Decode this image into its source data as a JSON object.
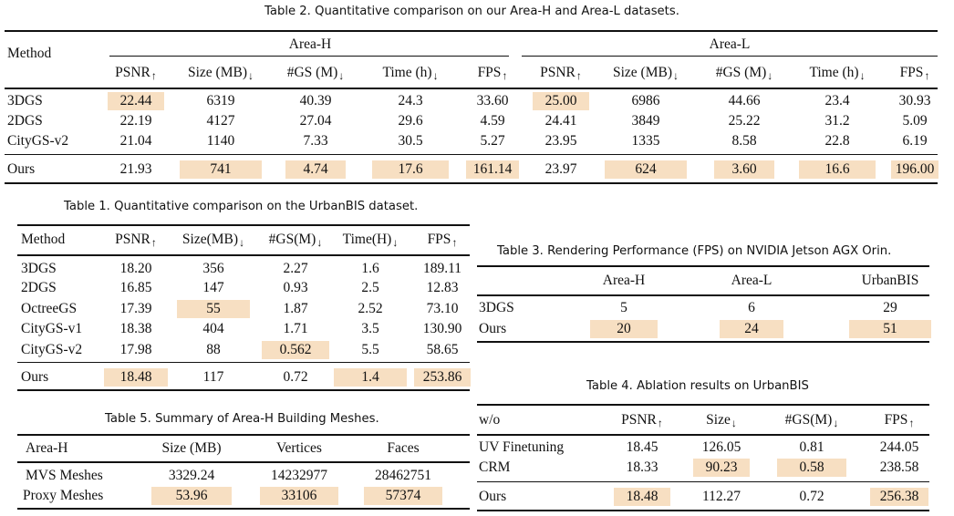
{
  "table2": {
    "caption": "Table 2.  Quantitative comparison on our Area-H and Area-L datasets.",
    "method_header": "Method",
    "group_h": "Area-H",
    "group_l": "Area-L",
    "cols": [
      "PSNR",
      "Size (MB)",
      "#GS (M)",
      "Time (h)",
      "FPS"
    ],
    "arrows": [
      "↑",
      "↓",
      "↓",
      "↓",
      "↑"
    ],
    "rows": [
      {
        "method": "3DGS",
        "h": [
          "22.44",
          "6319",
          "40.39",
          "24.3",
          "33.60"
        ],
        "l": [
          "25.00",
          "6986",
          "44.66",
          "23.4",
          "30.93"
        ]
      },
      {
        "method": "2DGS",
        "h": [
          "22.19",
          "4127",
          "27.04",
          "29.6",
          "4.59"
        ],
        "l": [
          "24.41",
          "3849",
          "25.22",
          "31.2",
          "5.09"
        ]
      },
      {
        "method": "CityGS-v2",
        "h": [
          "21.04",
          "1140",
          "7.33",
          "30.5",
          "5.27"
        ],
        "l": [
          "23.95",
          "1335",
          "8.58",
          "22.8",
          "6.19"
        ]
      },
      {
        "method": "Ours",
        "h": [
          "21.93",
          "741",
          "4.74",
          "17.6",
          "161.14"
        ],
        "l": [
          "23.97",
          "624",
          "3.60",
          "16.6",
          "196.00"
        ]
      }
    ]
  },
  "table1": {
    "caption": "Table 1.  Quantitative comparison on the UrbanBIS dataset.",
    "headers": [
      "Method",
      "PSNR",
      "Size(MB)",
      "#GS(M)",
      "Time(H)",
      "FPS"
    ],
    "arrows": [
      "",
      "↑",
      "↓",
      "↓",
      "↓",
      "↑"
    ],
    "rows": [
      [
        "3DGS",
        "18.20",
        "356",
        "2.27",
        "1.6",
        "189.11"
      ],
      [
        "2DGS",
        "16.85",
        "147",
        "0.93",
        "2.5",
        "12.83"
      ],
      [
        "OctreeGS",
        "17.39",
        "55",
        "1.87",
        "2.52",
        "73.10"
      ],
      [
        "CityGS-v1",
        "18.38",
        "404",
        "1.71",
        "3.5",
        "130.90"
      ],
      [
        "CityGS-v2",
        "17.98",
        "88",
        "0.562",
        "5.5",
        "58.65"
      ],
      [
        "Ours",
        "18.48",
        "117",
        "0.72",
        "1.4",
        "253.86"
      ]
    ]
  },
  "table3": {
    "caption": "Table 3.  Rendering Performance (FPS) on NVIDIA Jetson AGX Orin.",
    "headers": [
      "",
      "Area-H",
      "Area-L",
      "UrbanBIS"
    ],
    "rows": [
      [
        "3DGS",
        "5",
        "6",
        "29"
      ],
      [
        "Ours",
        "20",
        "24",
        "51"
      ]
    ]
  },
  "table4": {
    "caption": "Table 4.  Ablation results on UrbanBIS",
    "headers": [
      "w/o",
      "PSNR",
      "Size",
      "#GS(M)",
      "FPS"
    ],
    "arrows": [
      "",
      "↑",
      "↓",
      "↓",
      "↑"
    ],
    "rows": [
      [
        "UV Finetuning",
        "18.45",
        "126.05",
        "0.81",
        "244.05"
      ],
      [
        "CRM",
        "18.33",
        "90.23",
        "0.58",
        "238.58"
      ],
      [
        "Ours",
        "18.48",
        "112.27",
        "0.72",
        "256.38"
      ]
    ]
  },
  "table5": {
    "caption": "Table 5.  Summary of Area-H Building Meshes.",
    "headers": [
      "Area-H",
      "Size (MB)",
      "Vertices",
      "Faces"
    ],
    "rows": [
      [
        "MVS Meshes",
        "3329.24",
        "14232977",
        "28462751"
      ],
      [
        "Proxy Meshes",
        "53.96",
        "33106",
        "57374"
      ]
    ]
  },
  "colors": {
    "highlight": "#f7dfc2",
    "rule": "#111111"
  }
}
